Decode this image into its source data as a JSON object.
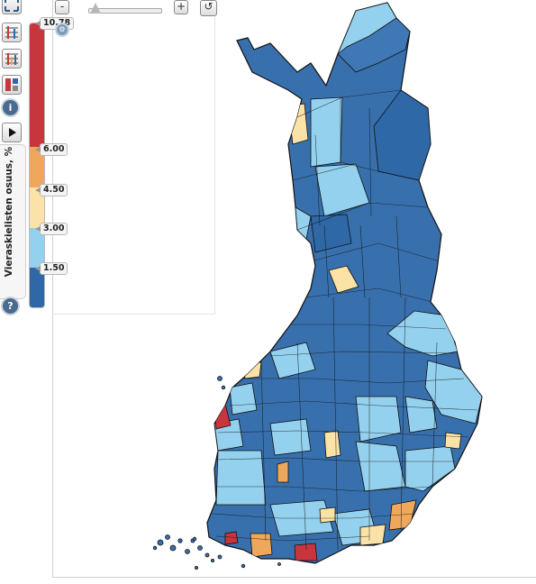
{
  "legend": {
    "title": "Vieraskielisten osuus, %",
    "breaks": [
      {
        "label": "10.78",
        "value": 10.78
      },
      {
        "label": "6.00",
        "value": 6.0
      },
      {
        "label": "4.50",
        "value": 4.5
      },
      {
        "label": "3.00",
        "value": 3.0
      },
      {
        "label": "1.50",
        "value": 1.5
      }
    ],
    "classes": [
      {
        "range": "6.00–10.78",
        "color": "#c8363d"
      },
      {
        "range": "4.50–6.00",
        "color": "#efa85b"
      },
      {
        "range": "3.00–4.50",
        "color": "#fbe3a7"
      },
      {
        "range": "1.50–3.00",
        "color": "#94d1ee"
      },
      {
        "range": "0–1.50",
        "color": "#2f68a6"
      }
    ]
  },
  "zoom": {
    "minus_label": "-",
    "plus_label": "+"
  },
  "toolbar": {
    "icons": [
      "chart-table-icon",
      "chart-compare-icon",
      "calculator-icon",
      "info-icon",
      "play-icon",
      "help-icon"
    ],
    "info_label": "i",
    "help_label": "?"
  },
  "map": {
    "region": "Finland municipalities",
    "colors": {
      "dark_blue": "#2f68a6",
      "mid_blue": "#3f78b5",
      "light_blue": "#94d1ee",
      "cream": "#fbe3a7",
      "orange": "#efa85b",
      "red": "#c8363d"
    }
  }
}
